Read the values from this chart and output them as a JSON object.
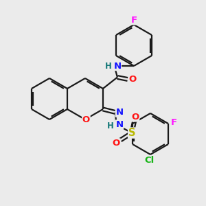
{
  "bg_color": "#ebebeb",
  "bond_color": "#1a1a1a",
  "bond_width": 1.6,
  "dbo": 0.08,
  "atom_colors": {
    "N": "#1414ff",
    "O": "#ff1414",
    "S": "#b8b800",
    "F": "#ff14ff",
    "Cl": "#14b414",
    "H": "#147878",
    "C": "#1a1a1a"
  },
  "fs": 9.5,
  "sfs": 8.5
}
